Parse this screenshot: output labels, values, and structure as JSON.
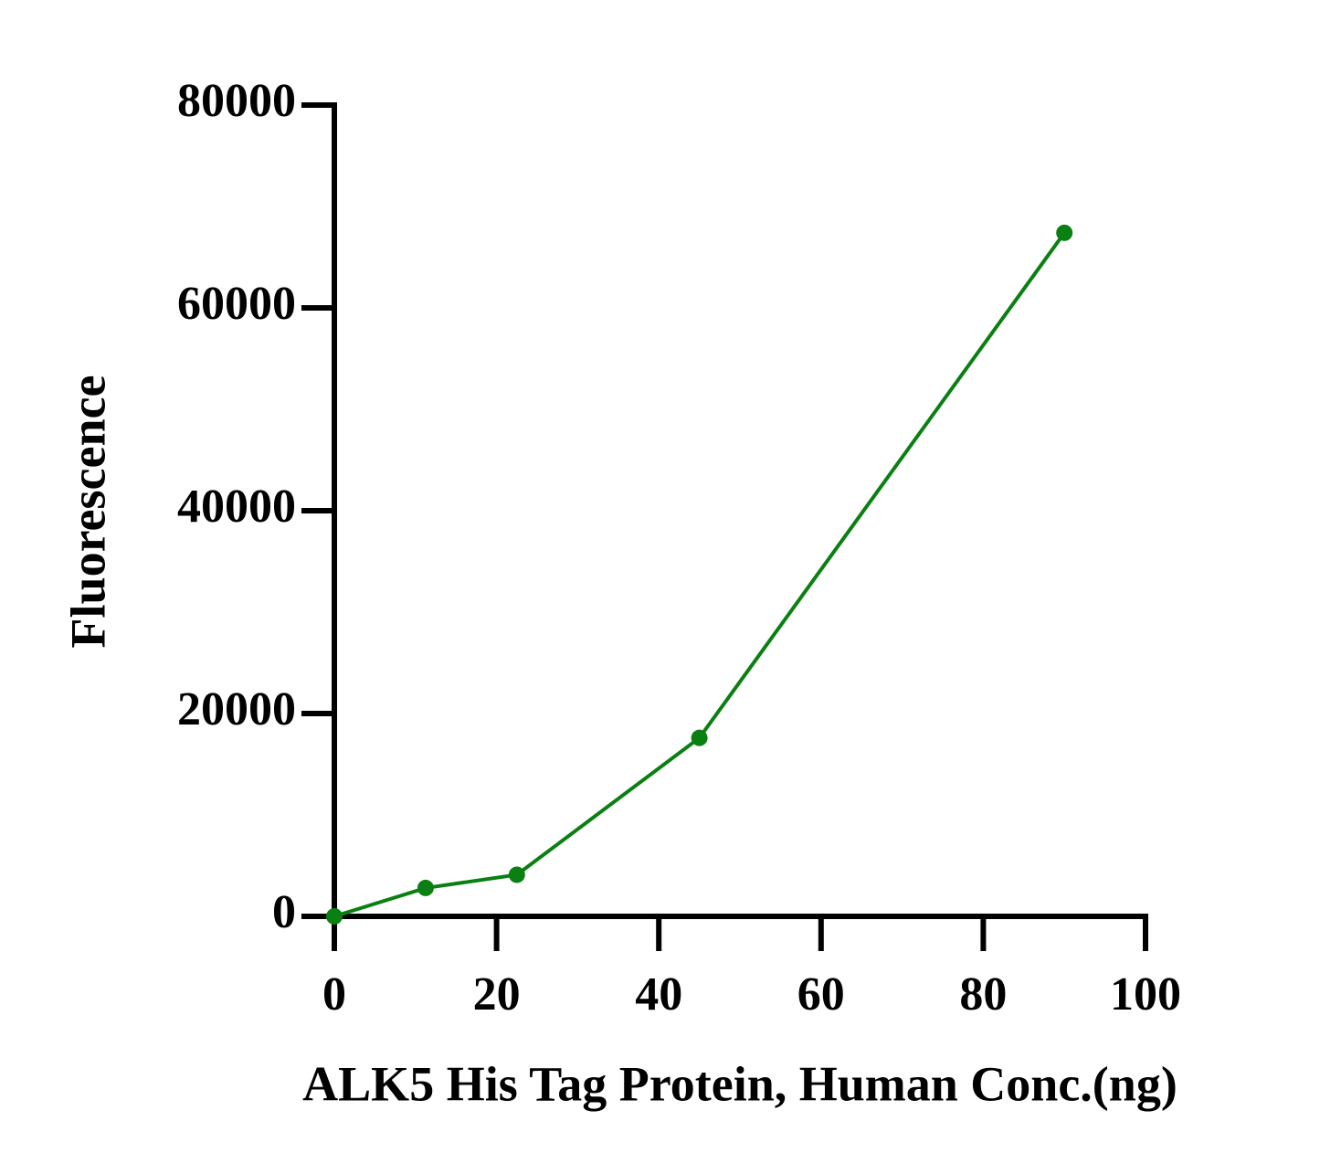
{
  "chart_data": {
    "type": "line",
    "x_label": "ALK5 His Tag Protein, Human Conc.(ng)",
    "y_label": "Fluorescence",
    "x": [
      0,
      11.25,
      22.5,
      45,
      90
    ],
    "series": [
      {
        "color": "#0a8012",
        "values": [
          0,
          2800,
          4100,
          17600,
          67400
        ]
      }
    ],
    "xlim": [
      0,
      100
    ],
    "xticks": [
      0,
      20,
      40,
      60,
      80,
      100
    ],
    "ylim": [
      0,
      80000
    ],
    "yticks": [
      0,
      20000,
      40000,
      60000,
      80000
    ]
  }
}
